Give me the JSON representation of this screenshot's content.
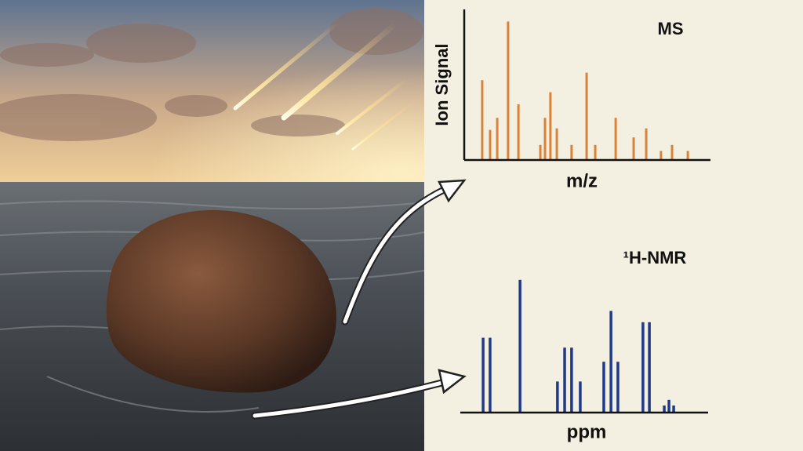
{
  "chart_data": [
    {
      "type": "bar",
      "title": "MS",
      "x_label": "m/z",
      "y_label": "Ion Signal",
      "color": "#d9823a",
      "x": [
        7.3,
        10.5,
        13.4,
        17.8,
        22.0,
        30.9,
        32.8,
        35.0,
        37.6,
        43.6,
        49.7,
        53.2,
        61.5,
        68.8,
        73.9,
        79.9,
        84.4,
        90.8
      ],
      "values": [
        53,
        20,
        28,
        92,
        37,
        10,
        28,
        45,
        21,
        10,
        58,
        10,
        28,
        15,
        21,
        6,
        10,
        6
      ],
      "xlim": [
        0,
        100
      ],
      "ylim": [
        0,
        100
      ]
    },
    {
      "type": "bar",
      "title": "¹H-NMR",
      "x_label": "ppm",
      "color": "#1f3a8a",
      "x": [
        9.2,
        12.0,
        24.1,
        39.2,
        42.1,
        44.9,
        48.4,
        57.9,
        60.8,
        63.6,
        73.7,
        76.3,
        82.3,
        84.2,
        86.1
      ],
      "values": [
        53,
        53,
        94,
        22,
        46,
        46,
        22,
        36,
        72,
        36,
        64,
        64,
        5,
        9,
        5
      ],
      "xlim": [
        0,
        100
      ],
      "ylim": [
        0,
        100
      ]
    }
  ]
}
